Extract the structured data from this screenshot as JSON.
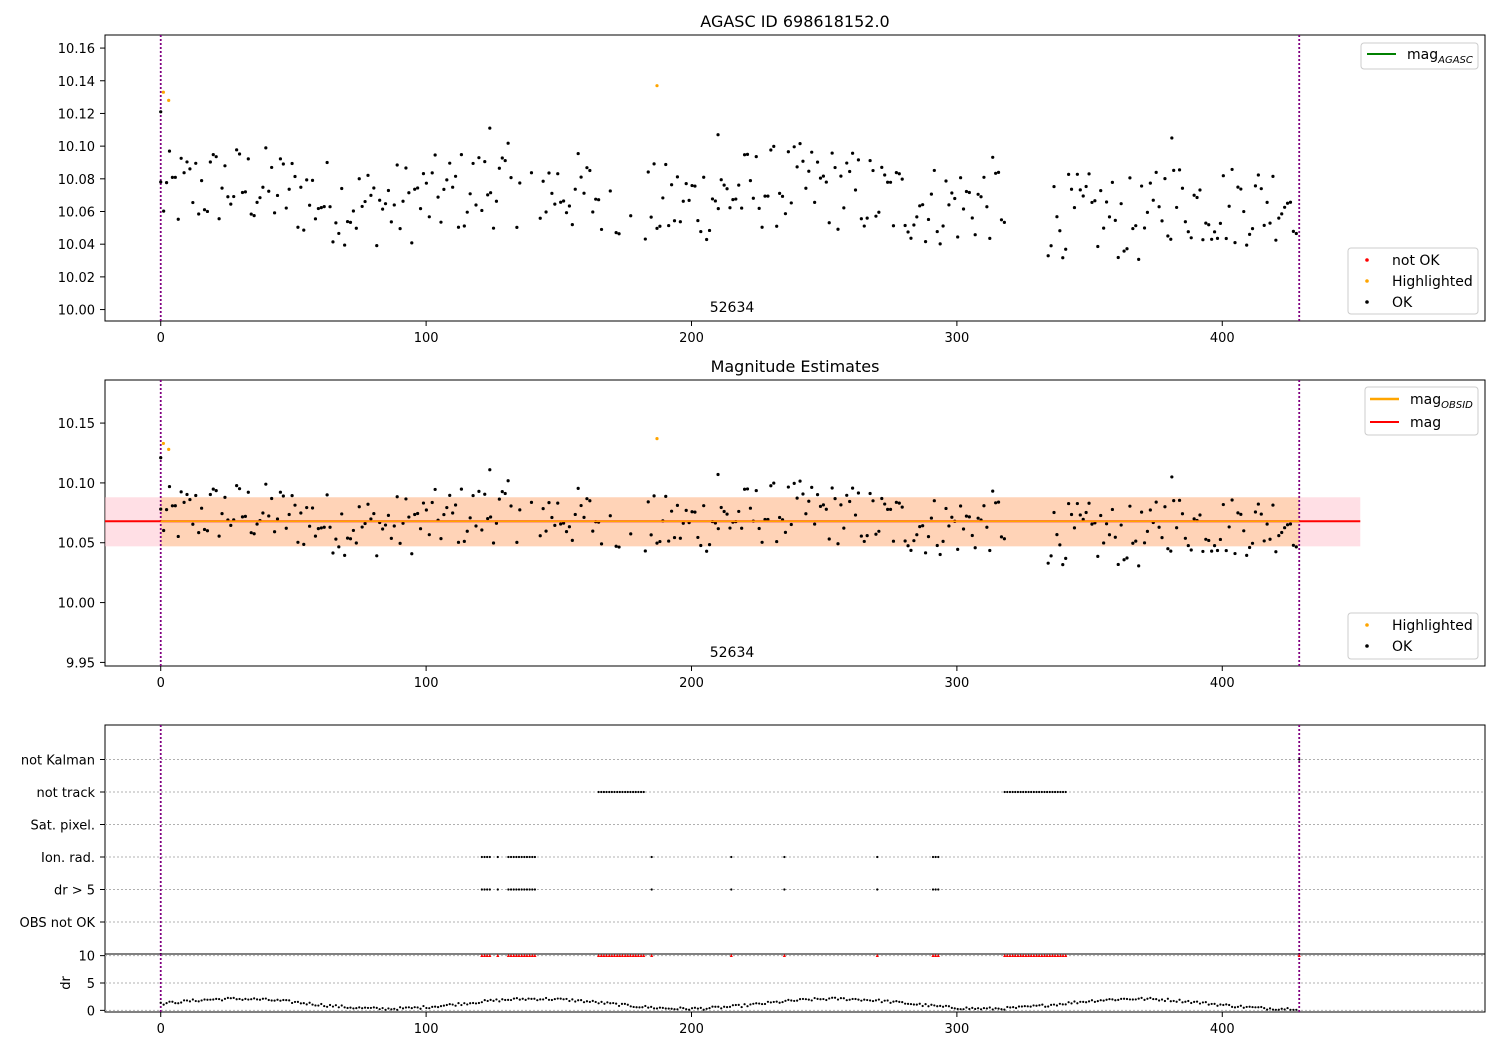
{
  "chart_data": [
    {
      "type": "scatter",
      "title": "AGASC ID 698618152.0",
      "annotation": "52634",
      "xlim": [
        -21,
        499
      ],
      "ylim": [
        9.993,
        10.168
      ],
      "xticks": [
        0,
        100,
        200,
        300,
        400
      ],
      "yticks": [
        10.0,
        10.02,
        10.04,
        10.06,
        10.08,
        10.1,
        10.12,
        10.14,
        10.16
      ],
      "ytick_labels": [
        "10.00",
        "10.02",
        "10.04",
        "10.06",
        "10.08",
        "10.10",
        "10.12",
        "10.14",
        "10.16"
      ],
      "vlines": [
        0,
        429
      ],
      "line_legend": [
        {
          "label": "mag",
          "sub": "AGASC",
          "color": "#008000"
        }
      ],
      "point_legend": [
        {
          "label": "not OK",
          "color": "#ff0000"
        },
        {
          "label": "Highlighted",
          "color": "#ffa500"
        },
        {
          "label": "OK",
          "color": "#000000"
        }
      ],
      "highlighted": [
        [
          1,
          10.133
        ],
        [
          3,
          10.128
        ],
        [
          187,
          10.137
        ]
      ],
      "series_name": "OK"
    },
    {
      "type": "scatter",
      "title": "Magnitude Estimates",
      "annotation": "52634",
      "xlim": [
        -21,
        499
      ],
      "ylim": [
        9.947,
        10.186
      ],
      "xticks": [
        0,
        100,
        200,
        300,
        400
      ],
      "yticks": [
        9.95,
        10.0,
        10.05,
        10.1,
        10.15
      ],
      "ytick_labels": [
        "9.95",
        "10.00",
        "10.05",
        "10.10",
        "10.15"
      ],
      "vlines": [
        0,
        429
      ],
      "line_legend": [
        {
          "label": "mag",
          "sub": "OBSID",
          "color": "#ffa500"
        },
        {
          "label": "mag",
          "sub": "",
          "color": "#ff0000"
        }
      ],
      "point_legend": [
        {
          "label": "Highlighted",
          "color": "#ffa500"
        },
        {
          "label": "OK",
          "color": "#000000"
        }
      ],
      "highlighted": [
        [
          1,
          10.133
        ],
        [
          3,
          10.128
        ],
        [
          187,
          10.137
        ]
      ],
      "mag_line": 10.068,
      "mag_band": [
        10.047,
        10.088
      ],
      "obsid_band": [
        10.047,
        10.088
      ],
      "band_x": [
        -21,
        452
      ],
      "obsid_band_x": [
        0,
        429
      ]
    },
    {
      "type": "scatter",
      "title": "",
      "xlim": [
        -21,
        499
      ],
      "xticks": [
        0,
        100,
        200,
        300,
        400
      ],
      "categories": [
        "OBS not OK",
        "dr > 5",
        "Ion. rad.",
        "Sat. pixel.",
        "not track",
        "not Kalman"
      ],
      "vlines": [
        0,
        429
      ],
      "flags": {
        "not Kalman": [
          [
            429,
            429
          ]
        ],
        "not track": [
          [
            165,
            182
          ],
          [
            318,
            341
          ]
        ],
        "Ion. rad.": [
          [
            121,
            124
          ],
          [
            127,
            127
          ],
          [
            131,
            135
          ],
          [
            136,
            138
          ],
          [
            139,
            141
          ],
          [
            185,
            185
          ],
          [
            215,
            215
          ],
          [
            235,
            235
          ],
          [
            270,
            270
          ],
          [
            291,
            293
          ]
        ],
        "dr > 5": [
          [
            121,
            124
          ],
          [
            127,
            127
          ],
          [
            131,
            135
          ],
          [
            136,
            138
          ],
          [
            139,
            141
          ],
          [
            185,
            185
          ],
          [
            215,
            215
          ],
          [
            235,
            235
          ],
          [
            270,
            270
          ],
          [
            291,
            293
          ]
        ],
        "Sat. pixel.": [],
        "OBS not OK": []
      }
    },
    {
      "type": "scatter",
      "title": "",
      "ylabel": "dr",
      "xlim": [
        -21,
        499
      ],
      "ylim": [
        -0.3,
        10.3
      ],
      "xticks": [
        0,
        100,
        200,
        300,
        400
      ],
      "xtick_labels": [
        "0",
        "100",
        "200",
        "300",
        "400"
      ],
      "yticks": [
        0,
        5,
        10
      ],
      "ytick_labels": [
        "0",
        "5",
        "10"
      ],
      "threshold": 5,
      "clipped_value": 10,
      "vlines": [
        0,
        429
      ]
    }
  ]
}
